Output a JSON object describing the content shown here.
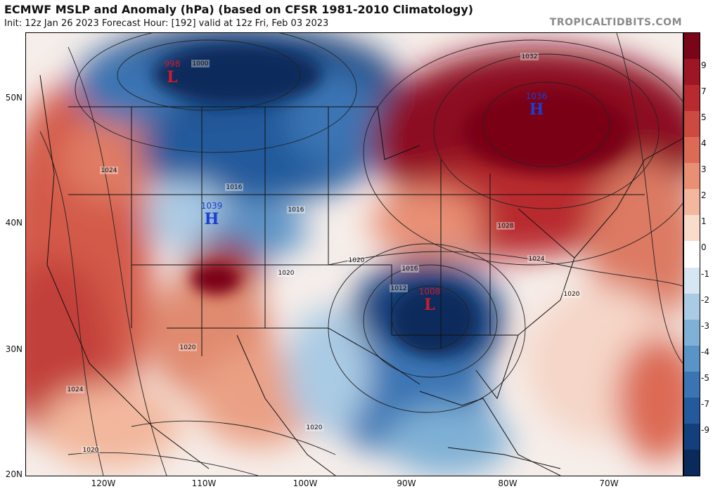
{
  "header": {
    "title": "ECMWF MSLP and Anomaly (hPa) (based on CFSR 1981-2010 Climatology)",
    "subtitle": "Init: 12z Jan 26 2023   Forecast Hour: [192]   valid at 12z Fri, Feb 03 2023",
    "brand": "TROPICALTIDBITS.COM"
  },
  "axes": {
    "lat_labels": [
      "50N",
      "40N",
      "30N",
      "20N"
    ],
    "lon_labels": [
      "120W",
      "110W",
      "100W",
      "90W",
      "80W",
      "70W"
    ]
  },
  "colorbar": {
    "labels": [
      "9",
      "7",
      "5",
      "4",
      "3",
      "2",
      "1",
      "0",
      "-1",
      "-2",
      "-3",
      "-4",
      "-5",
      "-7",
      "-9"
    ],
    "colors": [
      "#7a0418",
      "#9e1626",
      "#b82a2f",
      "#cc4a40",
      "#dc6b55",
      "#e88f74",
      "#f2b79c",
      "#fadccc",
      "#ffffff",
      "#d6e6f3",
      "#aacbe4",
      "#7fb0d5",
      "#5a93c6",
      "#3a74b3",
      "#245a9c",
      "#143f7d",
      "#0a2a5c"
    ]
  },
  "pressure_centers": [
    {
      "letter": "L",
      "value": "998",
      "color": "#cc1b2b"
    },
    {
      "letter": "H",
      "value": "1036",
      "color": "#1a3fd1"
    },
    {
      "letter": "H",
      "value": "1039",
      "color": "#1a3fd1"
    },
    {
      "letter": "L",
      "value": "1008",
      "color": "#cc1b2b"
    }
  ],
  "isobar_labels": [
    "1000",
    "1024",
    "1016",
    "1016",
    "1028",
    "1024",
    "1020",
    "1020",
    "1016",
    "1012",
    "1020",
    "1020",
    "1024",
    "1020",
    "1020",
    "1032"
  ]
}
